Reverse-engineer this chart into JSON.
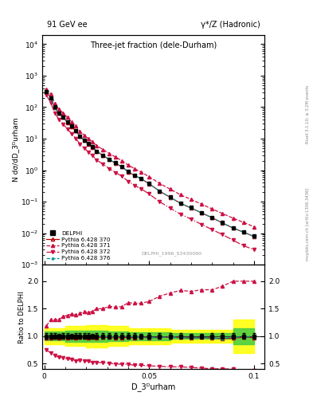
{
  "title_top_left": "91 GeV ee",
  "title_top_right": "γ*/Z (Hadronic)",
  "main_title": "Three-jet fraction (dele-Durham)",
  "xlabel": "D_3ᴰurham",
  "ylabel_main": "N dσ/dD_3ᴰurham",
  "ylabel_ratio": "Ratio to DELPHI",
  "watermark": "DELPHI_1996_S3430090",
  "right_label_top": "Rivet 3.1.10; ≥ 3.2M events",
  "right_label_bot": "mcplots.cern.ch [arXiv:1306.3436]",
  "delphi_x": [
    0.001,
    0.003,
    0.005,
    0.007,
    0.009,
    0.011,
    0.013,
    0.015,
    0.017,
    0.019,
    0.021,
    0.023,
    0.025,
    0.028,
    0.031,
    0.034,
    0.037,
    0.04,
    0.043,
    0.046,
    0.05,
    0.055,
    0.06,
    0.065,
    0.07,
    0.075,
    0.08,
    0.085,
    0.09,
    0.095,
    0.1
  ],
  "delphi_y": [
    320,
    200,
    100,
    65,
    48,
    34,
    25,
    18,
    12,
    9.0,
    7.0,
    5.5,
    4.0,
    3.0,
    2.2,
    1.7,
    1.3,
    0.9,
    0.7,
    0.55,
    0.38,
    0.22,
    0.14,
    0.09,
    0.065,
    0.045,
    0.032,
    0.022,
    0.015,
    0.011,
    0.008
  ],
  "delphi_yerr": [
    16,
    10,
    5,
    3.2,
    2.4,
    1.7,
    1.2,
    0.9,
    0.6,
    0.45,
    0.35,
    0.27,
    0.2,
    0.15,
    0.11,
    0.085,
    0.065,
    0.045,
    0.035,
    0.027,
    0.019,
    0.011,
    0.007,
    0.0045,
    0.0032,
    0.0022,
    0.0016,
    0.0011,
    0.00075,
    0.00055,
    0.0004
  ],
  "py370_x": [
    0.001,
    0.003,
    0.005,
    0.007,
    0.009,
    0.011,
    0.013,
    0.015,
    0.017,
    0.019,
    0.021,
    0.023,
    0.025,
    0.028,
    0.031,
    0.034,
    0.037,
    0.04,
    0.043,
    0.046,
    0.05,
    0.055,
    0.06,
    0.065,
    0.07,
    0.075,
    0.08,
    0.085,
    0.09,
    0.095,
    0.1
  ],
  "py370_y": [
    310,
    195,
    98,
    63,
    47,
    33,
    24.5,
    17.5,
    11.8,
    8.8,
    6.8,
    5.4,
    3.9,
    2.95,
    2.15,
    1.65,
    1.27,
    0.88,
    0.68,
    0.54,
    0.37,
    0.215,
    0.138,
    0.088,
    0.063,
    0.044,
    0.031,
    0.021,
    0.0145,
    0.0108,
    0.0078
  ],
  "py371_x": [
    0.001,
    0.003,
    0.005,
    0.007,
    0.009,
    0.011,
    0.013,
    0.015,
    0.017,
    0.019,
    0.021,
    0.023,
    0.025,
    0.028,
    0.031,
    0.034,
    0.037,
    0.04,
    0.043,
    0.046,
    0.05,
    0.055,
    0.06,
    0.065,
    0.07,
    0.075,
    0.08,
    0.085,
    0.09,
    0.095,
    0.1
  ],
  "py371_y": [
    380,
    260,
    130,
    85,
    65,
    47,
    35,
    25,
    17,
    13,
    10,
    8.0,
    6.0,
    4.5,
    3.4,
    2.6,
    2.0,
    1.45,
    1.12,
    0.88,
    0.62,
    0.38,
    0.25,
    0.165,
    0.118,
    0.083,
    0.059,
    0.042,
    0.03,
    0.022,
    0.016
  ],
  "py372_x": [
    0.001,
    0.003,
    0.005,
    0.007,
    0.009,
    0.011,
    0.013,
    0.015,
    0.017,
    0.019,
    0.021,
    0.023,
    0.025,
    0.028,
    0.031,
    0.034,
    0.037,
    0.04,
    0.043,
    0.046,
    0.05,
    0.055,
    0.06,
    0.065,
    0.07,
    0.075,
    0.08,
    0.085,
    0.09,
    0.095,
    0.1
  ],
  "py372_y": [
    240,
    140,
    65,
    40,
    29,
    20,
    14.5,
    10.0,
    6.8,
    5.0,
    3.8,
    2.9,
    2.1,
    1.55,
    1.12,
    0.84,
    0.64,
    0.44,
    0.33,
    0.26,
    0.175,
    0.1,
    0.062,
    0.04,
    0.028,
    0.019,
    0.013,
    0.009,
    0.006,
    0.004,
    0.003
  ],
  "py376_x": [
    0.001,
    0.003,
    0.005,
    0.007,
    0.009,
    0.011,
    0.013,
    0.015,
    0.017,
    0.019,
    0.021,
    0.023,
    0.025,
    0.028,
    0.031,
    0.034,
    0.037,
    0.04,
    0.043,
    0.046,
    0.05,
    0.055,
    0.06,
    0.065,
    0.07,
    0.075,
    0.08,
    0.085,
    0.09,
    0.095,
    0.1
  ],
  "py376_y": [
    315,
    198,
    99,
    64,
    48,
    34,
    25,
    18,
    12.1,
    9.0,
    7.0,
    5.5,
    4.0,
    3.0,
    2.18,
    1.67,
    1.28,
    0.9,
    0.69,
    0.54,
    0.37,
    0.215,
    0.138,
    0.088,
    0.063,
    0.044,
    0.031,
    0.021,
    0.0148,
    0.0108,
    0.0079
  ],
  "color_delphi": "#000000",
  "color_370": "#bb0000",
  "color_371": "#cc1144",
  "color_372": "#cc1144",
  "color_376": "#009999",
  "band_x_edges": [
    0.0,
    0.01,
    0.02,
    0.03,
    0.04,
    0.05,
    0.06,
    0.07,
    0.08,
    0.09,
    0.1
  ],
  "band_yellow_lo": [
    0.85,
    0.82,
    0.8,
    0.82,
    0.85,
    0.85,
    0.88,
    0.88,
    0.88,
    0.7,
    0.7
  ],
  "band_yellow_hi": [
    1.15,
    1.18,
    1.2,
    1.18,
    1.15,
    1.15,
    1.12,
    1.12,
    1.12,
    1.3,
    1.3
  ],
  "band_green_lo": [
    0.92,
    0.9,
    0.9,
    0.91,
    0.93,
    0.93,
    0.95,
    0.95,
    0.95,
    0.85,
    0.85
  ],
  "band_green_hi": [
    1.08,
    1.1,
    1.1,
    1.09,
    1.07,
    1.07,
    1.05,
    1.05,
    1.05,
    1.15,
    1.15
  ],
  "xlim": [
    -0.001,
    0.105
  ],
  "ylim_main": [
    0.001,
    20000.0
  ],
  "ylim_ratio": [
    0.4,
    2.3
  ],
  "ratio_yticks": [
    0.5,
    1.0,
    1.5,
    2.0
  ]
}
